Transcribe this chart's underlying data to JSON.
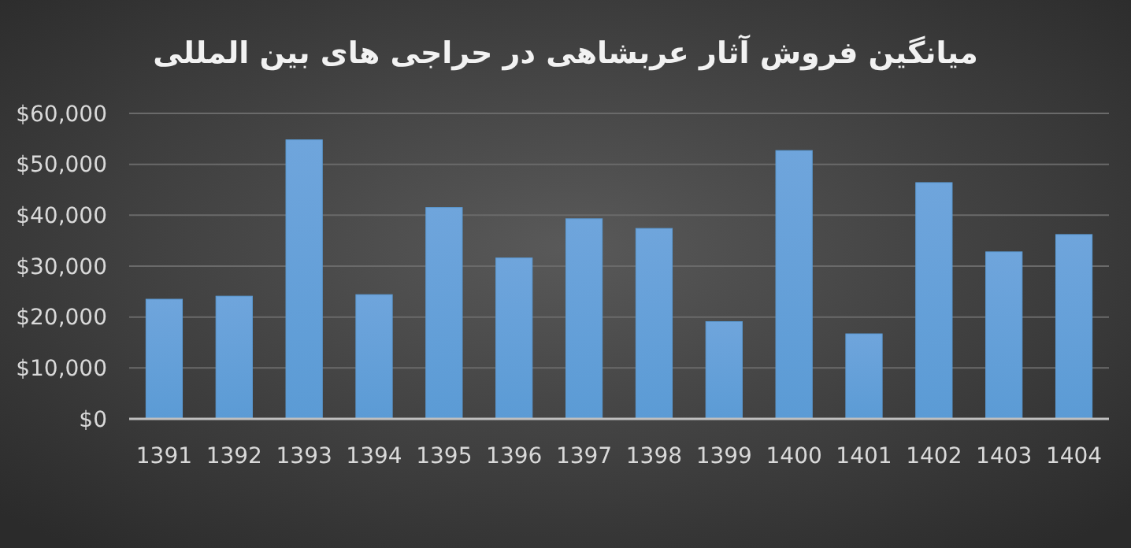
{
  "chart_data": {
    "type": "bar",
    "title": "میانگین فروش آثار عربشاهی در حراجی های بین المللی",
    "categories": [
      "1391",
      "1392",
      "1393",
      "1394",
      "1395",
      "1396",
      "1397",
      "1398",
      "1399",
      "1400",
      "1401",
      "1402",
      "1403",
      "1404"
    ],
    "values": [
      23500,
      24100,
      54800,
      24400,
      41500,
      31600,
      39300,
      37400,
      19100,
      52700,
      16700,
      46400,
      32800,
      36200
    ],
    "color": "#5b9bd5",
    "ylim": [
      0,
      60000
    ],
    "yticks": [
      {
        "value": 0,
        "label": "$0"
      },
      {
        "value": 10000,
        "label": "$10,000"
      },
      {
        "value": 20000,
        "label": "$20,000"
      },
      {
        "value": 30000,
        "label": "$30,000"
      },
      {
        "value": 40000,
        "label": "$40,000"
      },
      {
        "value": 50000,
        "label": "$50,000"
      },
      {
        "value": 60000,
        "label": "$60,000"
      }
    ],
    "grid": "y"
  }
}
